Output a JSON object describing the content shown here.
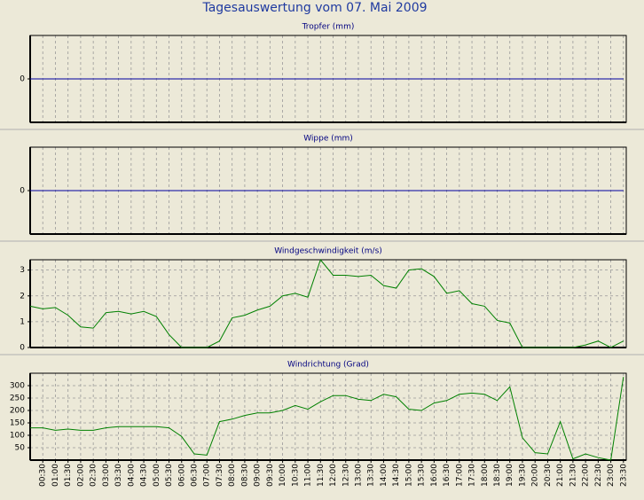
{
  "title": "Tagesauswertung vom 07. Mai 2009",
  "chart_data": [
    {
      "type": "line",
      "title": "Tropfer (mm)",
      "color": "#0000a0",
      "values": [
        0,
        0,
        0,
        0,
        0,
        0,
        0,
        0,
        0,
        0,
        0,
        0,
        0,
        0,
        0,
        0,
        0,
        0,
        0,
        0,
        0,
        0,
        0,
        0,
        0,
        0,
        0,
        0,
        0,
        0,
        0,
        0,
        0,
        0,
        0,
        0,
        0,
        0,
        0,
        0,
        0,
        0,
        0,
        0,
        0,
        0,
        0,
        0
      ],
      "ylim": [
        -1,
        1
      ],
      "yticks": [
        0
      ],
      "grid": "vertical"
    },
    {
      "type": "line",
      "title": "Wippe (mm)",
      "color": "#0000a0",
      "values": [
        0,
        0,
        0,
        0,
        0,
        0,
        0,
        0,
        0,
        0,
        0,
        0,
        0,
        0,
        0,
        0,
        0,
        0,
        0,
        0,
        0,
        0,
        0,
        0,
        0,
        0,
        0,
        0,
        0,
        0,
        0,
        0,
        0,
        0,
        0,
        0,
        0,
        0,
        0,
        0,
        0,
        0,
        0,
        0,
        0,
        0,
        0,
        0
      ],
      "ylim": [
        -1,
        1
      ],
      "yticks": [
        0
      ],
      "grid": "vertical"
    },
    {
      "type": "line",
      "title": "Windgeschwindigkeit (m/s)",
      "color": "#008000",
      "values": [
        1.6,
        1.5,
        1.55,
        1.25,
        0.8,
        0.75,
        1.35,
        1.4,
        1.3,
        1.4,
        1.2,
        0.5,
        0,
        0,
        0,
        0.25,
        1.15,
        1.25,
        1.45,
        1.6,
        2.0,
        2.1,
        1.95,
        3.4,
        2.8,
        2.8,
        2.75,
        2.8,
        2.4,
        2.3,
        3.0,
        3.05,
        2.75,
        2.1,
        2.2,
        1.7,
        1.6,
        1.05,
        0.95,
        0,
        0,
        0,
        0,
        0,
        0.1,
        0.25,
        0,
        0.25
      ],
      "ylim": [
        0,
        3.4
      ],
      "yticks": [
        0,
        1,
        2,
        3
      ],
      "grid": "both"
    },
    {
      "type": "line",
      "title": "Windrichtung (Grad)",
      "color": "#008000",
      "categories": [
        null,
        "00:30",
        "01:00",
        "01:30",
        "02:00",
        "02:30",
        "03:00",
        "03:30",
        "04:00",
        "04:30",
        "05:00",
        "05:30",
        "06:00",
        "06:30",
        "07:00",
        "07:30",
        "08:00",
        "08:30",
        "09:00",
        "09:30",
        "10:00",
        "10:30",
        "11:00",
        "11:30",
        "12:00",
        "12:30",
        "13:00",
        "13:30",
        "14:00",
        "14:30",
        "15:00",
        "15:30",
        "16:00",
        "16:30",
        "17:00",
        "17:30",
        "18:00",
        "18:30",
        "19:00",
        "19:30",
        "20:00",
        "20:30",
        "21:00",
        "21:30",
        "22:00",
        "22:30",
        "23:00",
        "23:30"
      ],
      "values": [
        130,
        130,
        120,
        125,
        120,
        120,
        130,
        135,
        135,
        135,
        135,
        130,
        95,
        25,
        20,
        155,
        165,
        180,
        190,
        190,
        200,
        220,
        205,
        235,
        260,
        260,
        245,
        240,
        265,
        255,
        205,
        200,
        230,
        240,
        265,
        270,
        265,
        240,
        295,
        90,
        30,
        25,
        155,
        5,
        25,
        10,
        0,
        335
      ],
      "ylim": [
        0,
        350
      ],
      "yticks": [
        50,
        100,
        150,
        200,
        250,
        300
      ],
      "grid": "both"
    }
  ]
}
